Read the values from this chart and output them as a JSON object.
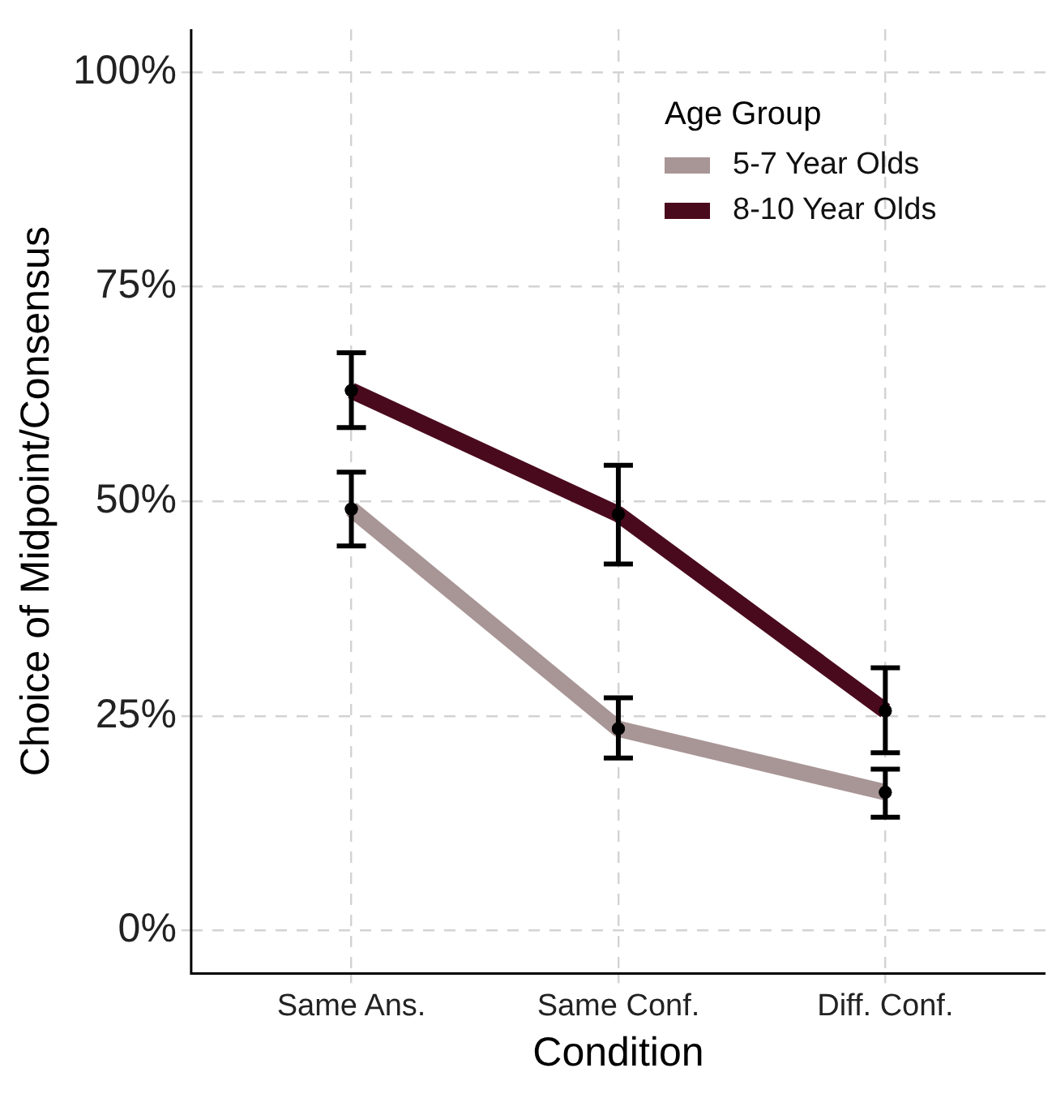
{
  "chart_data": {
    "type": "line",
    "xlabel": "Condition",
    "ylabel": "Choice of Midpoint/Consensus",
    "legend_title": "Age Group",
    "categories": [
      "Same Ans.",
      "Same Conf.",
      "Diff. Conf."
    ],
    "series": [
      {
        "name": "5-7 Year Olds",
        "color": "#a89595",
        "values": [
          49.1,
          23.5,
          16.1
        ],
        "errors": [
          [
            44.8,
            53.4
          ],
          [
            20.1,
            27.1
          ],
          [
            13.2,
            18.8
          ]
        ]
      },
      {
        "name": "8-10 Year Olds",
        "color": "#4a0a1e",
        "values": [
          62.9,
          48.5,
          25.6
        ],
        "errors": [
          [
            58.6,
            67.3
          ],
          [
            42.7,
            54.2
          ],
          [
            20.7,
            30.6
          ]
        ]
      }
    ],
    "ylim": [
      -5,
      105
    ],
    "yticks": [
      {
        "value": 0,
        "label": "0%"
      },
      {
        "value": 25,
        "label": "25%"
      },
      {
        "value": 50,
        "label": "50%"
      },
      {
        "value": 75,
        "label": "75%"
      },
      {
        "value": 100,
        "label": "100%"
      }
    ],
    "grid": true,
    "legend": "top right",
    "marker": "circle",
    "line_style": "solid"
  }
}
